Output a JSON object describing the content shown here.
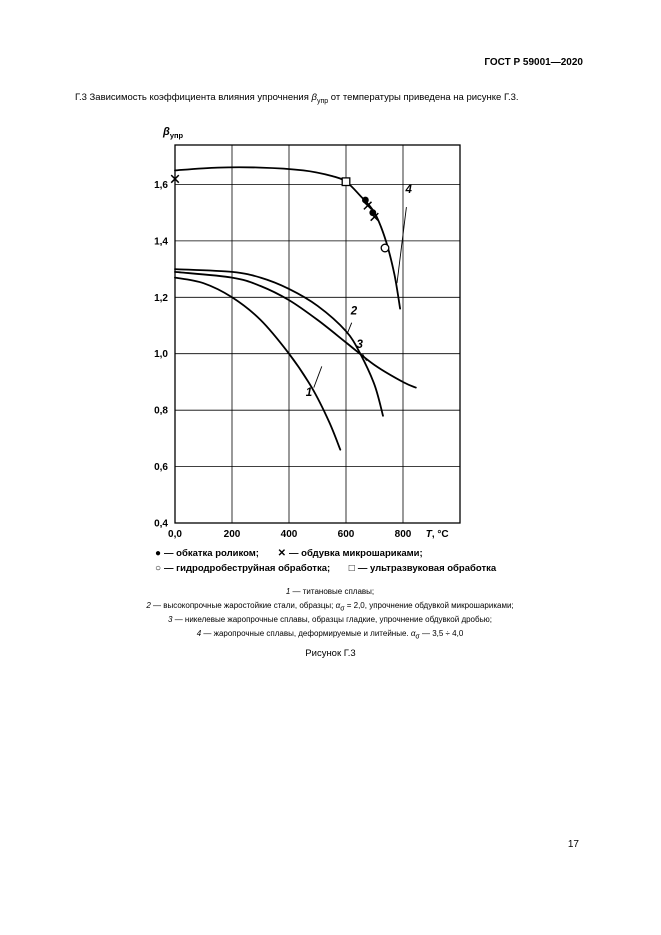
{
  "header": {
    "title": "ГОСТ Р 59001—2020"
  },
  "paragraph": {
    "pre": "Г.3 Зависимость коэффициента влияния упрочнения ",
    "symbol": "β",
    "symbol_sub": "упр",
    "post": " от температуры приведена на рисунке Г.3."
  },
  "chart_data": {
    "type": "line",
    "title": "",
    "ylabel": {
      "sym": "β",
      "sub": "упр"
    },
    "xlabel": {
      "main": "T",
      "rest": ", °C"
    },
    "xlabel_x": 920,
    "xlim": [
      0,
      1000
    ],
    "ylim": [
      0.4,
      1.74
    ],
    "grid": true,
    "xgrid": [
      200,
      400,
      600,
      800
    ],
    "ygrid": [
      0.6,
      0.8,
      1.0,
      1.2,
      1.4,
      1.6
    ],
    "xticks": [
      {
        "v": 0,
        "label": "0,0"
      },
      {
        "v": 200,
        "label": "200"
      },
      {
        "v": 400,
        "label": "400"
      },
      {
        "v": 600,
        "label": "600"
      },
      {
        "v": 800,
        "label": "800"
      }
    ],
    "yticks": [
      {
        "v": 1.6,
        "label": "1,6"
      },
      {
        "v": 1.4,
        "label": "1,4"
      },
      {
        "v": 1.2,
        "label": "1,2"
      },
      {
        "v": 1.0,
        "label": "1,0"
      },
      {
        "v": 0.8,
        "label": "0,8"
      },
      {
        "v": 0.6,
        "label": "0,6"
      },
      {
        "v": 0.4,
        "label": "0,4"
      }
    ],
    "series": [
      {
        "name": "1",
        "points": [
          [
            0,
            1.27
          ],
          [
            100,
            1.25
          ],
          [
            200,
            1.2
          ],
          [
            300,
            1.12
          ],
          [
            400,
            1.0
          ],
          [
            480,
            0.88
          ],
          [
            540,
            0.76
          ],
          [
            580,
            0.66
          ]
        ]
      },
      {
        "name": "2",
        "points": [
          [
            0,
            1.3
          ],
          [
            200,
            1.29
          ],
          [
            300,
            1.27
          ],
          [
            400,
            1.23
          ],
          [
            500,
            1.17
          ],
          [
            600,
            1.08
          ],
          [
            650,
            1.0
          ],
          [
            700,
            0.89
          ],
          [
            730,
            0.78
          ]
        ]
      },
      {
        "name": "3",
        "points": [
          [
            0,
            1.29
          ],
          [
            200,
            1.27
          ],
          [
            300,
            1.24
          ],
          [
            400,
            1.19
          ],
          [
            500,
            1.12
          ],
          [
            600,
            1.04
          ],
          [
            700,
            0.96
          ],
          [
            800,
            0.9
          ],
          [
            845,
            0.88
          ]
        ]
      },
      {
        "name": "4",
        "points": [
          [
            0,
            1.65
          ],
          [
            150,
            1.66
          ],
          [
            300,
            1.66
          ],
          [
            450,
            1.65
          ],
          [
            550,
            1.63
          ],
          [
            600,
            1.61
          ],
          [
            650,
            1.56
          ],
          [
            700,
            1.5
          ],
          [
            740,
            1.4
          ],
          [
            770,
            1.28
          ],
          [
            790,
            1.16
          ]
        ]
      }
    ],
    "markers": [
      {
        "type": "x",
        "x": 0,
        "y": 1.62
      },
      {
        "type": "square",
        "x": 600,
        "y": 1.61
      },
      {
        "type": "dot",
        "x": 668,
        "y": 1.545
      },
      {
        "type": "x",
        "x": 676,
        "y": 1.525
      },
      {
        "type": "dot",
        "x": 694,
        "y": 1.5
      },
      {
        "type": "x",
        "x": 700,
        "y": 1.485
      },
      {
        "type": "circle",
        "x": 737,
        "y": 1.375
      }
    ],
    "curve_labels": [
      {
        "text": "1",
        "x": 470,
        "y": 0.85,
        "leader": [
          [
            487,
            0.88
          ],
          [
            515,
            0.955
          ]
        ]
      },
      {
        "text": "2",
        "x": 628,
        "y": 1.14,
        "leader": [
          [
            620,
            1.11
          ],
          [
            604,
            1.07
          ]
        ]
      },
      {
        "text": "3",
        "x": 648,
        "y": 1.02,
        "leader": [
          [
            658,
            1.0
          ],
          [
            672,
            0.975
          ]
        ]
      },
      {
        "text": "4",
        "x": 820,
        "y": 1.57,
        "leader": [
          [
            812,
            1.52
          ],
          [
            779,
            1.25
          ]
        ]
      }
    ]
  },
  "legend": {
    "items": [
      {
        "symbol": "●",
        "label": "— обкатка роликом;"
      },
      {
        "symbol": "✕",
        "label": "— обдувка микрошариками;"
      },
      {
        "symbol": "○",
        "label": "— гидродробеструйная обработка;"
      },
      {
        "symbol": "□",
        "label": "— ультразвуковая обработка"
      }
    ]
  },
  "notes": {
    "lines": [
      {
        "num": "1",
        "pre": " — титановые сплавы;"
      },
      {
        "num": "2",
        "pre": " — высокопрочные жаростойкие стали, образцы; ",
        "alpha": "α",
        "alpha_sub": "σ",
        "post": " = 2,0, упрочнение обдувкой микрошариками;"
      },
      {
        "num": "3",
        "pre": " — никелевые жаропрочные сплавы, образцы гладкие, упрочнение обдувкой дробью;"
      },
      {
        "num": "4",
        "pre": " — жаропрочные сплавы, деформируемые и литейные. ",
        "alpha": "α",
        "alpha_sub": "σ",
        "post": " — 3,5 ÷ 4,0"
      }
    ]
  },
  "figure": {
    "caption": "Рисунок Г.3"
  },
  "footer": {
    "page_number": "17"
  }
}
